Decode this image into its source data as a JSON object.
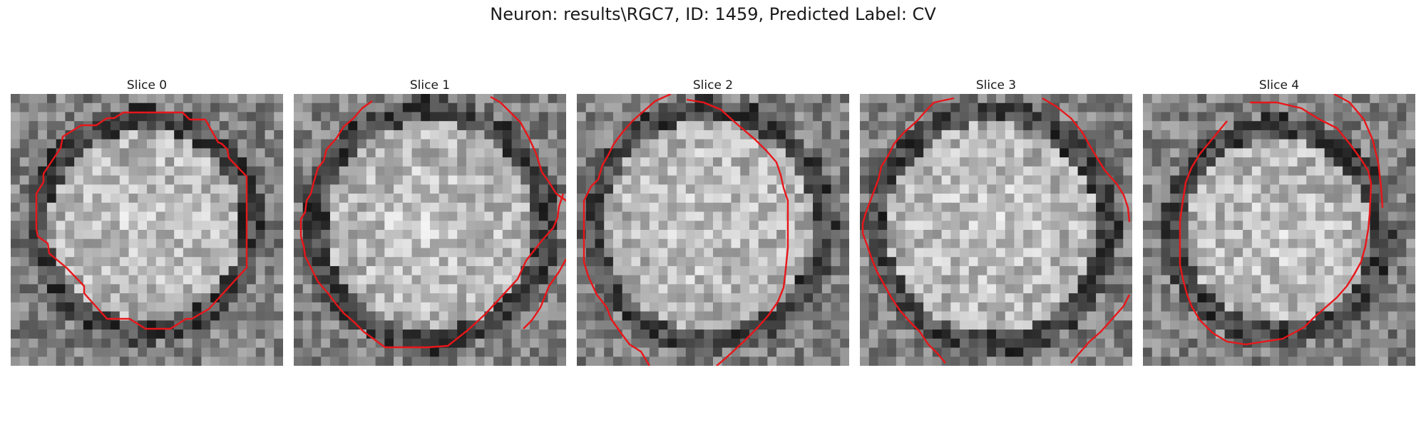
{
  "figure": {
    "title": "Neuron: results\\RGC7, ID: 1459, Predicted Label: CV"
  },
  "panels": [
    {
      "title": "Slice 0"
    },
    {
      "title": "Slice 1"
    },
    {
      "title": "Slice 2"
    },
    {
      "title": "Slice 3"
    },
    {
      "title": "Slice 4"
    }
  ],
  "colors": {
    "contour": "#e8161a",
    "background": "#ffffff"
  },
  "image": {
    "colormap": "grayscale",
    "grid_cells": 30
  }
}
